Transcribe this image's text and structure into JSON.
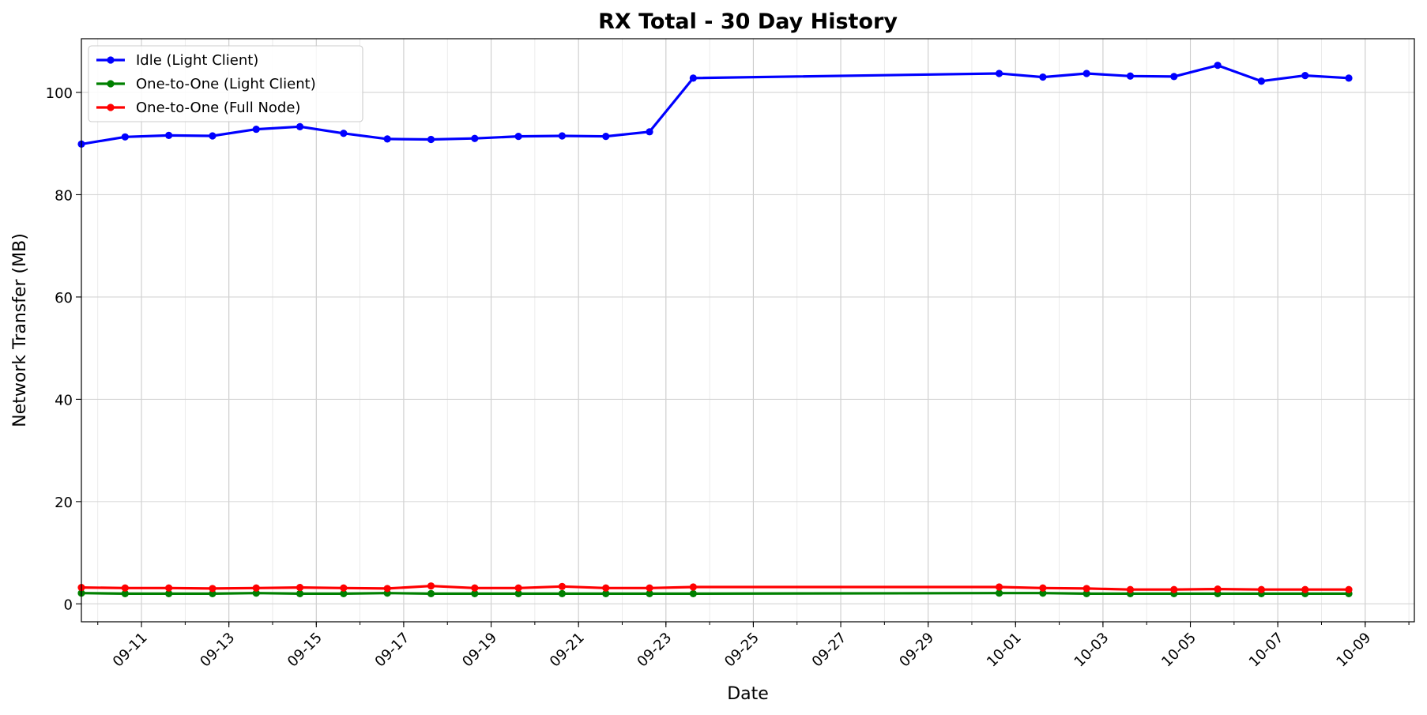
{
  "chart_data": {
    "type": "line",
    "title": "RX Total - 30 Day History",
    "xlabel": "Date",
    "ylabel": "Network Transfer (MB)",
    "xlim": [
      "2024-09-09T15:00",
      "2024-10-10T03:00"
    ],
    "ylim": [
      -3.5,
      110.5
    ],
    "yticks": [
      0,
      20,
      40,
      60,
      80,
      100
    ],
    "xticks": [
      "09-11",
      "09-13",
      "09-15",
      "09-17",
      "09-19",
      "09-21",
      "09-23",
      "09-25",
      "09-27",
      "09-29",
      "10-01",
      "10-03",
      "10-05",
      "10-07",
      "10-09"
    ],
    "grid": true,
    "legend_position": "upper-left",
    "series": [
      {
        "name": "Idle (Light Client)",
        "color": "#0000ff",
        "x": [
          "2024-09-09T15:00",
          "2024-09-10T15:00",
          "2024-09-11T15:00",
          "2024-09-12T15:00",
          "2024-09-13T15:00",
          "2024-09-14T15:00",
          "2024-09-15T15:00",
          "2024-09-16T15:00",
          "2024-09-17T15:00",
          "2024-09-18T15:00",
          "2024-09-19T15:00",
          "2024-09-20T15:00",
          "2024-09-21T15:00",
          "2024-09-22T15:00",
          "2024-09-23T15:00",
          "2024-09-30T15:00",
          "2024-10-01T15:00",
          "2024-10-02T15:00",
          "2024-10-03T15:00",
          "2024-10-04T15:00",
          "2024-10-05T15:00",
          "2024-10-06T15:00",
          "2024-10-07T15:00",
          "2024-10-08T15:00"
        ],
        "values": [
          89.9,
          91.3,
          91.6,
          91.5,
          92.8,
          93.3,
          92.0,
          90.9,
          90.8,
          91.0,
          91.4,
          91.5,
          91.4,
          92.3,
          102.8,
          103.7,
          103.0,
          103.7,
          103.2,
          103.1,
          105.3,
          102.2,
          103.3,
          102.8
        ]
      },
      {
        "name": "One-to-One (Light Client)",
        "color": "#008000",
        "x": [
          "2024-09-09T15:00",
          "2024-09-10T15:00",
          "2024-09-11T15:00",
          "2024-09-12T15:00",
          "2024-09-13T15:00",
          "2024-09-14T15:00",
          "2024-09-15T15:00",
          "2024-09-16T15:00",
          "2024-09-17T15:00",
          "2024-09-18T15:00",
          "2024-09-19T15:00",
          "2024-09-20T15:00",
          "2024-09-21T15:00",
          "2024-09-22T15:00",
          "2024-09-23T15:00",
          "2024-09-30T15:00",
          "2024-10-01T15:00",
          "2024-10-02T15:00",
          "2024-10-03T15:00",
          "2024-10-04T15:00",
          "2024-10-05T15:00",
          "2024-10-06T15:00",
          "2024-10-07T15:00",
          "2024-10-08T15:00"
        ],
        "values": [
          2.1,
          2.0,
          2.0,
          2.0,
          2.1,
          2.0,
          2.0,
          2.1,
          2.0,
          2.0,
          2.0,
          2.0,
          2.0,
          2.0,
          2.0,
          2.1,
          2.1,
          2.0,
          2.0,
          2.0,
          2.0,
          2.0,
          2.0,
          2.0
        ]
      },
      {
        "name": "One-to-One (Full Node)",
        "color": "#ff0000",
        "x": [
          "2024-09-09T15:00",
          "2024-09-10T15:00",
          "2024-09-11T15:00",
          "2024-09-12T15:00",
          "2024-09-13T15:00",
          "2024-09-14T15:00",
          "2024-09-15T15:00",
          "2024-09-16T15:00",
          "2024-09-17T15:00",
          "2024-09-18T15:00",
          "2024-09-19T15:00",
          "2024-09-20T15:00",
          "2024-09-21T15:00",
          "2024-09-22T15:00",
          "2024-09-23T15:00",
          "2024-09-30T15:00",
          "2024-10-01T15:00",
          "2024-10-02T15:00",
          "2024-10-03T15:00",
          "2024-10-04T15:00",
          "2024-10-05T15:00",
          "2024-10-06T15:00",
          "2024-10-07T15:00",
          "2024-10-08T15:00"
        ],
        "values": [
          3.2,
          3.1,
          3.1,
          3.0,
          3.1,
          3.2,
          3.1,
          3.0,
          3.5,
          3.1,
          3.1,
          3.4,
          3.1,
          3.1,
          3.3,
          3.3,
          3.1,
          3.0,
          2.8,
          2.8,
          2.9,
          2.8,
          2.8,
          2.8
        ]
      }
    ]
  }
}
